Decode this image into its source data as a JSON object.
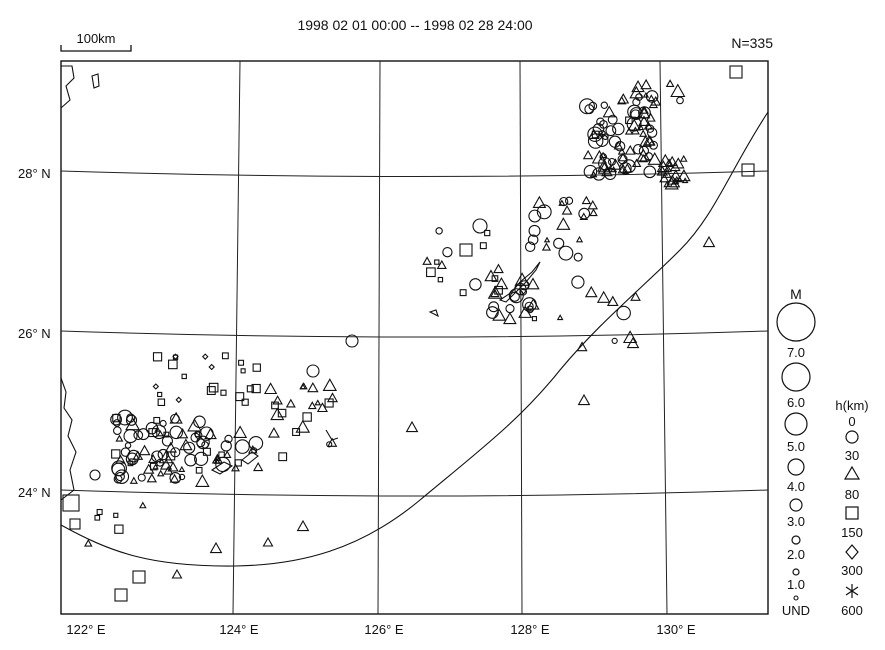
{
  "header": {
    "period": "1998 02 01 00:00 -- 1998 02 28 24:00",
    "count": "N=335",
    "scale_label": "100km"
  },
  "axes": {
    "lat_labels": [
      "28° N",
      "26° N",
      "24° N"
    ],
    "lon_labels": [
      "122° E",
      "124° E",
      "126° E",
      "128° E",
      "130° E"
    ]
  },
  "legend": {
    "magnitude_title": "M",
    "magnitudes": [
      "7.0",
      "6.0",
      "5.0",
      "4.0",
      "3.0",
      "2.0",
      "1.0",
      "UND"
    ],
    "depth_title": "h(km)",
    "depths": [
      "0",
      "30",
      "80",
      "150",
      "300",
      "600"
    ],
    "depth_symbols": [
      "circle",
      "triangle",
      "square",
      "diamond",
      "asterisk"
    ]
  },
  "colors": {
    "ink": "#111111",
    "background": "#ffffff"
  }
}
